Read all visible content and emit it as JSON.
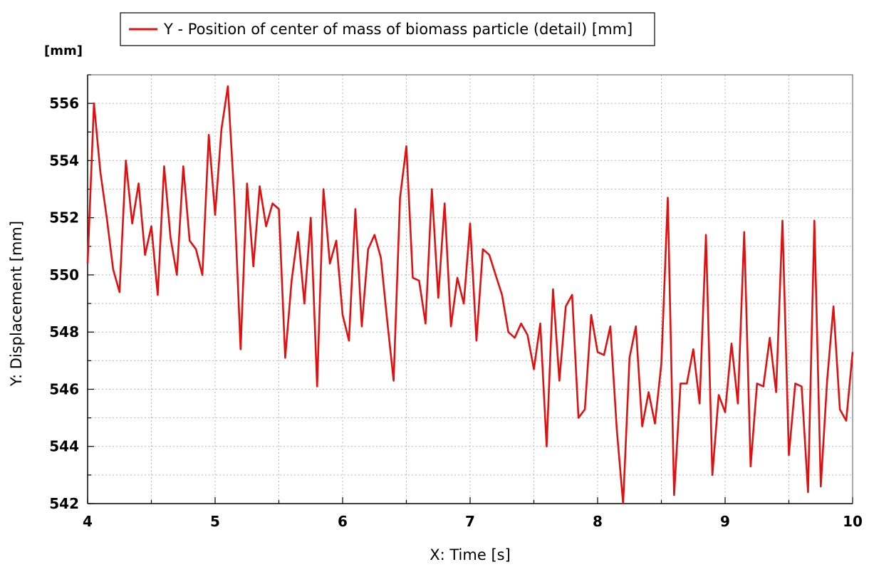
{
  "chart_data": {
    "type": "line",
    "title": "",
    "xlabel": "X: Time  [s]",
    "ylabel": "Y: Displacement [mm]",
    "y_unit_label": "[mm]",
    "xlim": [
      4,
      10
    ],
    "ylim": [
      542,
      557
    ],
    "x_ticks": [
      4,
      5,
      6,
      7,
      8,
      9,
      10
    ],
    "y_ticks": [
      542,
      544,
      546,
      548,
      550,
      552,
      554,
      556
    ],
    "grid": true,
    "legend_position": "top-left",
    "series": [
      {
        "name": "Y - Position of center of mass of biomass particle (detail) [mm]",
        "color": "#e01010",
        "x": [
          4.0,
          4.05,
          4.1,
          4.15,
          4.2,
          4.25,
          4.3,
          4.35,
          4.4,
          4.45,
          4.5,
          4.55,
          4.6,
          4.65,
          4.7,
          4.75,
          4.8,
          4.85,
          4.9,
          4.95,
          5.0,
          5.05,
          5.1,
          5.15,
          5.2,
          5.25,
          5.3,
          5.35,
          5.4,
          5.45,
          5.5,
          5.55,
          5.6,
          5.65,
          5.7,
          5.75,
          5.8,
          5.85,
          5.9,
          5.95,
          6.0,
          6.05,
          6.1,
          6.15,
          6.2,
          6.25,
          6.3,
          6.35,
          6.4,
          6.45,
          6.5,
          6.55,
          6.6,
          6.65,
          6.7,
          6.75,
          6.8,
          6.85,
          6.9,
          6.95,
          7.0,
          7.05,
          7.1,
          7.15,
          7.2,
          7.25,
          7.3,
          7.35,
          7.4,
          7.45,
          7.5,
          7.55,
          7.6,
          7.65,
          7.7,
          7.75,
          7.8,
          7.85,
          7.9,
          7.95,
          8.0,
          8.05,
          8.1,
          8.15,
          8.2,
          8.25,
          8.3,
          8.35,
          8.4,
          8.45,
          8.5,
          8.55,
          8.6,
          8.65,
          8.7,
          8.75,
          8.8,
          8.85,
          8.9,
          8.95,
          9.0,
          9.05,
          9.1,
          9.15,
          9.2,
          9.25,
          9.3,
          9.35,
          9.4,
          9.45,
          9.5,
          9.55,
          9.6,
          9.65,
          9.7,
          9.75,
          9.8,
          9.85,
          9.9,
          9.95,
          10.0
        ],
        "y": [
          550.4,
          556.0,
          553.6,
          552.0,
          550.2,
          549.4,
          554.0,
          551.8,
          553.2,
          550.7,
          551.7,
          549.3,
          553.8,
          551.3,
          550.0,
          553.8,
          551.2,
          550.9,
          550.0,
          554.9,
          552.1,
          555.1,
          556.6,
          552.7,
          547.4,
          553.2,
          550.3,
          553.1,
          551.7,
          552.5,
          552.3,
          547.1,
          549.8,
          551.5,
          549.0,
          552.0,
          546.1,
          553.0,
          550.4,
          551.2,
          548.6,
          547.7,
          552.3,
          548.2,
          550.9,
          551.4,
          550.6,
          548.4,
          546.3,
          552.7,
          554.5,
          549.9,
          549.8,
          548.3,
          553.0,
          549.2,
          552.5,
          548.2,
          549.9,
          549.0,
          551.8,
          547.7,
          550.9,
          550.7,
          550.0,
          549.3,
          548.0,
          547.8,
          548.3,
          547.9,
          546.7,
          548.3,
          544.0,
          549.5,
          546.3,
          548.9,
          549.3,
          545.0,
          545.3,
          548.6,
          547.3,
          547.2,
          548.2,
          544.6,
          542.0,
          547.1,
          548.2,
          544.7,
          545.9,
          544.8,
          546.9,
          552.7,
          542.3,
          546.2,
          546.2,
          547.4,
          545.5,
          551.4,
          543.0,
          545.8,
          545.2,
          547.6,
          545.5,
          551.5,
          543.3,
          546.2,
          546.1,
          547.8,
          545.9,
          551.9,
          543.7,
          546.2,
          546.1,
          542.4,
          551.9,
          542.6,
          546.3,
          548.9,
          545.3,
          544.9,
          547.3
        ]
      }
    ]
  }
}
